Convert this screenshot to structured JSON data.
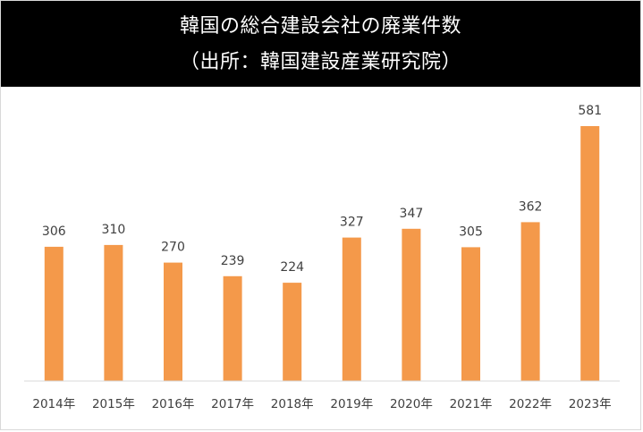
{
  "chart_data": {
    "type": "bar",
    "title": "韓国の総合建設会社の廃業件数",
    "subtitle": "（出所：韓国建設産業研究院）",
    "categories": [
      "2014年",
      "2015年",
      "2016年",
      "2017年",
      "2018年",
      "2019年",
      "2020年",
      "2021年",
      "2022年",
      "2023年"
    ],
    "values": [
      306,
      310,
      270,
      239,
      224,
      327,
      347,
      305,
      362,
      581
    ],
    "ylim": [
      0,
      600
    ],
    "grid": false,
    "legend": "none",
    "data_labels": true,
    "bar_color": "#f4994a",
    "title_band_color": "#000000",
    "title_text_color": "#ffffff"
  }
}
